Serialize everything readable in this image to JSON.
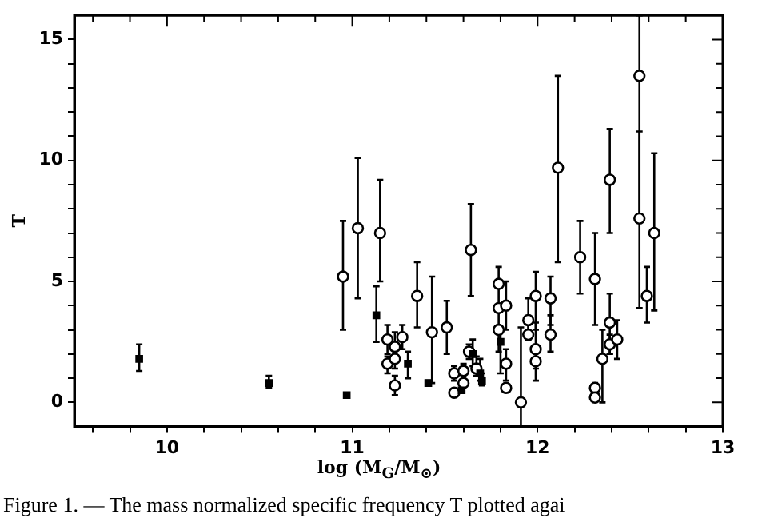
{
  "chart_data": {
    "type": "scatter",
    "xlabel": "log (M$_{G}$/M$_{⊙}$)",
    "ylabel": "T",
    "annotations": [
      "Figure 1. — The mass normalized specific frequency T plotted agai"
    ],
    "xlim": [
      9.5,
      13
    ],
    "ylim": [
      -1,
      16
    ],
    "xticks": [
      {
        "value": 9.6,
        "label": null
      },
      {
        "value": 9.8,
        "label": null
      },
      10,
      {
        "value": 10.2,
        "label": null
      },
      {
        "value": 10.4,
        "label": null
      },
      {
        "value": 10.6,
        "label": null
      },
      {
        "value": 10.8,
        "label": null
      },
      11,
      {
        "value": 11.2,
        "label": null
      },
      {
        "value": 11.4,
        "label": null
      },
      {
        "value": 11.6,
        "label": null
      },
      {
        "value": 11.8,
        "label": null
      },
      12,
      {
        "value": 12.2,
        "label": null
      },
      {
        "value": 12.4,
        "label": null
      },
      {
        "value": 12.6,
        "label": null
      },
      {
        "value": 12.8,
        "label": null
      },
      13
    ],
    "yticks": [
      0,
      {
        "value": 1,
        "label": null
      },
      {
        "value": 2,
        "label": null
      },
      {
        "value": 3,
        "label": null
      },
      {
        "value": 4,
        "label": null
      },
      5,
      {
        "value": 6,
        "label": null
      },
      {
        "value": 7,
        "label": null
      },
      {
        "value": 8,
        "label": null
      },
      {
        "value": 9,
        "label": null
      },
      10,
      {
        "value": 11,
        "label": null
      },
      {
        "value": 12,
        "label": null
      },
      {
        "value": 13,
        "label": null
      },
      {
        "value": 14,
        "label": null
      },
      15
    ],
    "grid": false,
    "legend": false,
    "series": [
      {
        "color": "#000000",
        "marker": "circle",
        "x": [
          10.95,
          11.03,
          11.15,
          11.19,
          11.19,
          11.23,
          11.23,
          11.23,
          11.27,
          11.35,
          11.43,
          11.51,
          11.55,
          11.55,
          11.6,
          11.6,
          11.64,
          11.63,
          11.67,
          11.79,
          11.79,
          11.79,
          11.83,
          11.83,
          11.83,
          11.91,
          11.95,
          11.95,
          11.99,
          11.99,
          11.99,
          12.07,
          12.07,
          12.11,
          12.23,
          12.31,
          12.31,
          12.31,
          12.35,
          12.39,
          12.39,
          12.39,
          12.43,
          12.55,
          12.55,
          12.59,
          12.63
        ],
        "values": [
          5.2,
          7.2,
          7.0,
          2.6,
          1.6,
          1.8,
          2.3,
          0.7,
          2.7,
          4.4,
          2.9,
          3.1,
          1.2,
          0.4,
          1.3,
          0.8,
          6.3,
          2.1,
          1.4,
          4.9,
          3.9,
          3.0,
          4.0,
          1.6,
          0.6,
          0.0,
          2.8,
          3.4,
          4.4,
          2.2,
          1.7,
          4.3,
          2.8,
          9.7,
          6.0,
          5.1,
          0.6,
          0.2,
          1.8,
          2.4,
          3.3,
          9.2,
          2.6,
          13.5,
          7.6,
          4.4,
          7.0
        ],
        "errors": [
          [
            3.0,
            7.5
          ],
          [
            4.3,
            10.1
          ],
          [
            5.0,
            9.2
          ],
          [
            2.0,
            3.2
          ],
          [
            1.2,
            1.9
          ],
          [
            1.4,
            2.3
          ],
          [
            1.9,
            2.9
          ],
          [
            0.3,
            1.1
          ],
          [
            2.2,
            3.2
          ],
          [
            3.1,
            5.8
          ],
          [
            0.8,
            5.2
          ],
          [
            2.0,
            4.2
          ],
          [
            0.9,
            1.5
          ],
          null,
          [
            0.9,
            1.6
          ],
          null,
          [
            4.4,
            8.2
          ],
          [
            1.8,
            2.4
          ],
          [
            1.1,
            1.9
          ],
          [
            3.8,
            5.6
          ],
          null,
          [
            2.1,
            3.9
          ],
          [
            3.0,
            5.0
          ],
          [
            0.9,
            2.2
          ],
          null,
          [
            -1,
            3.1
          ],
          [
            2.6,
            3.3
          ],
          [
            2.8,
            4.3
          ],
          [
            3.0,
            5.4
          ],
          [
            1.4,
            3.3
          ],
          [
            0.9,
            2.2
          ],
          [
            3.2,
            5.2
          ],
          [
            2.1,
            3.6
          ],
          [
            5.8,
            13.5
          ],
          [
            4.5,
            7.5
          ],
          [
            3.2,
            7.0
          ],
          [
            0.4,
            0.8
          ],
          null,
          [
            0.0,
            3.0
          ],
          [
            2.0,
            2.8
          ],
          [
            2.0,
            4.5
          ],
          [
            7.0,
            11.3
          ],
          [
            1.8,
            3.4
          ],
          [
            7.6,
            16
          ],
          [
            3.9,
            11.2
          ],
          [
            3.3,
            5.6
          ],
          [
            3.8,
            10.3
          ]
        ]
      },
      {
        "color": "#000000",
        "marker": "square",
        "x": [
          9.85,
          10.55,
          10.97,
          11.13,
          11.3,
          11.41,
          11.59,
          11.65,
          11.69,
          11.7,
          11.8
        ],
        "values": [
          1.8,
          0.8,
          0.3,
          3.6,
          1.6,
          0.8,
          0.5,
          2.0,
          1.2,
          0.9,
          2.5
        ],
        "errors": [
          [
            1.3,
            2.4
          ],
          [
            0.6,
            1.1
          ],
          null,
          [
            2.5,
            4.8
          ],
          [
            1.0,
            2.1
          ],
          [
            0.7,
            0.9
          ],
          null,
          [
            1.5,
            2.6
          ],
          [
            0.9,
            1.8
          ],
          [
            0.7,
            1.2
          ],
          [
            1.2,
            3.0
          ]
        ]
      }
    ]
  }
}
